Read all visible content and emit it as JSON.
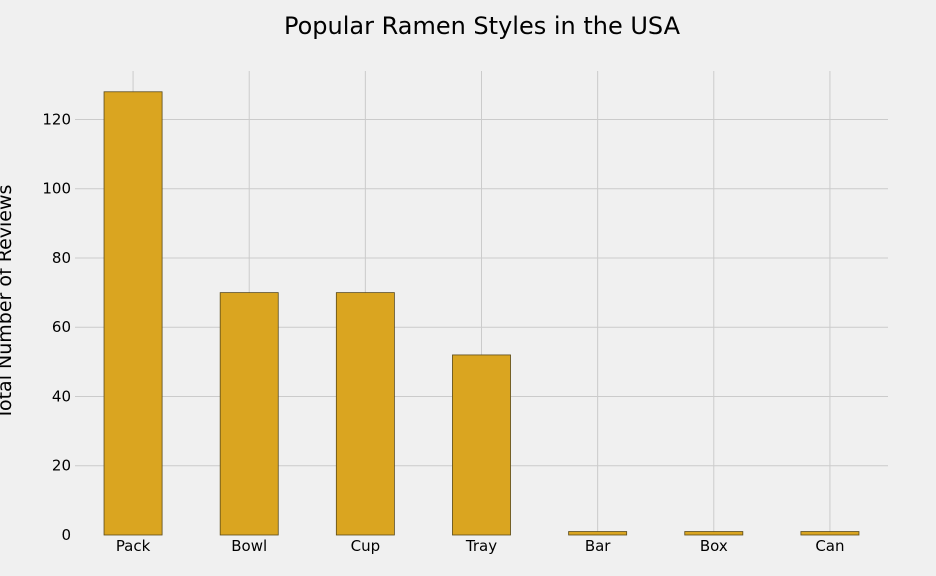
{
  "chart_data": {
    "type": "bar",
    "title": "Popular Ramen Styles in the USA",
    "xlabel": "",
    "ylabel": "Total Number of Reviews",
    "categories": [
      "Pack",
      "Bowl",
      "Cup",
      "Tray",
      "Bar",
      "Box",
      "Can"
    ],
    "values": [
      128,
      70,
      70,
      52,
      1,
      1,
      1
    ],
    "ylim": [
      0,
      134
    ],
    "yticks": [
      0,
      20,
      40,
      60,
      80,
      100,
      120
    ],
    "grid": true,
    "bar_color": "#daa520",
    "background": "#f0f0f0"
  }
}
